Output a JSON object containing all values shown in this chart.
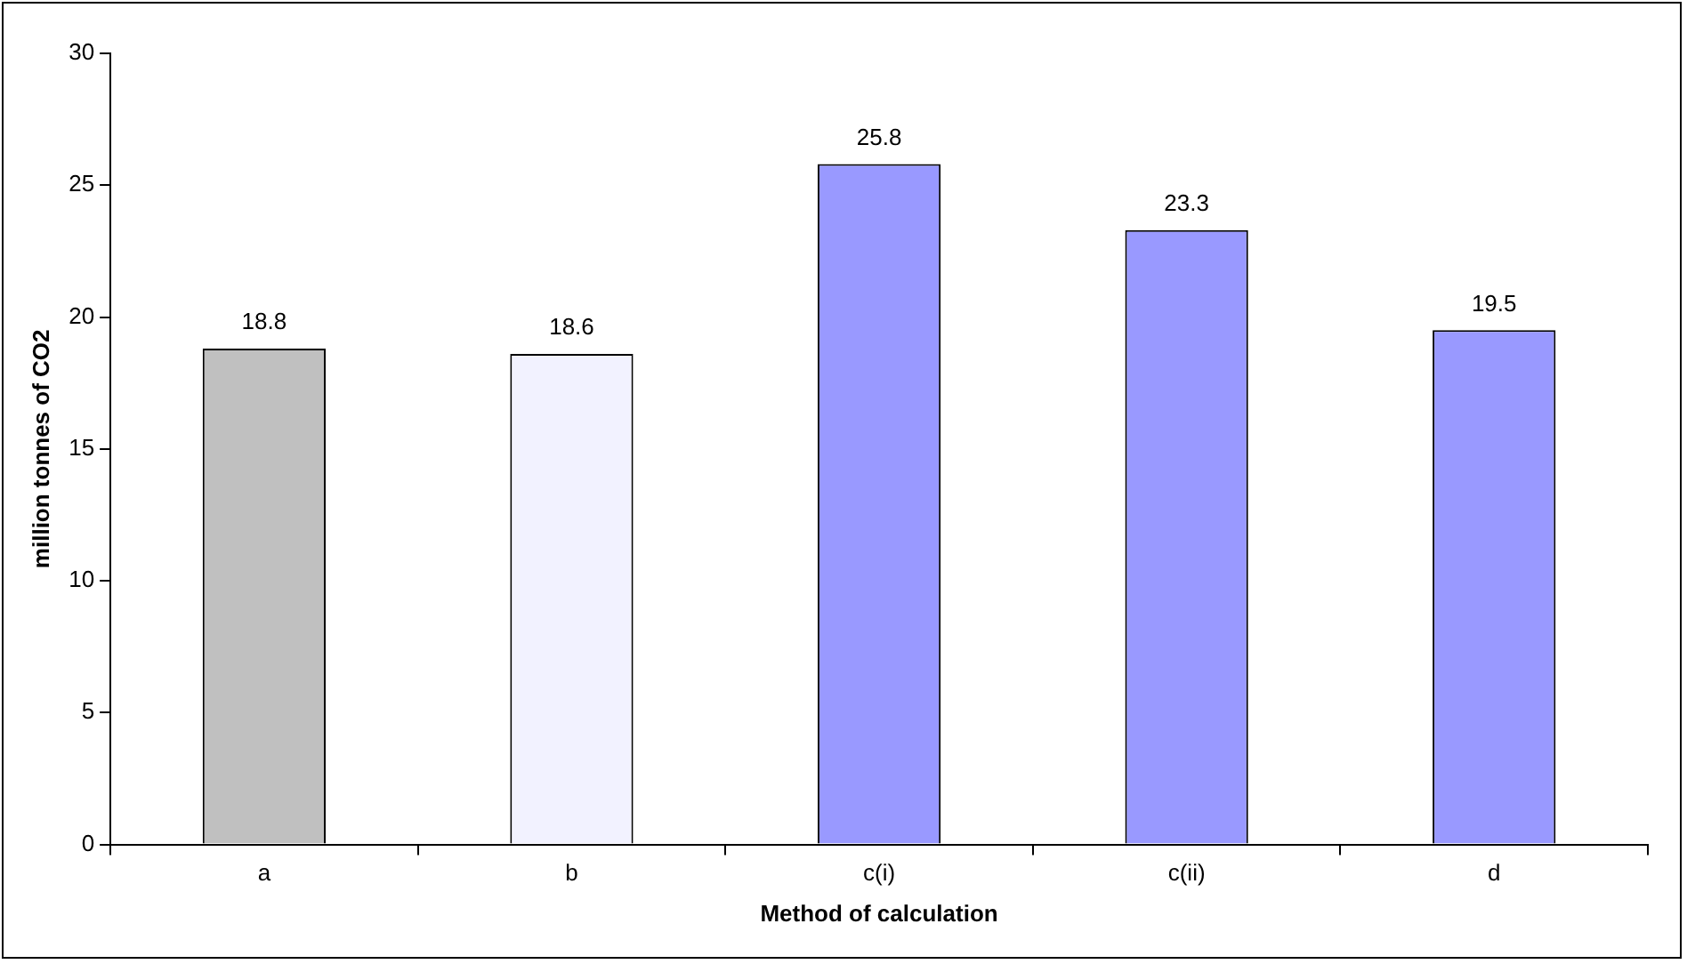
{
  "chart_data": {
    "type": "bar",
    "xlabel": "Method of calculation",
    "ylabel": "million tonnes of CO2",
    "categories": [
      "a",
      "b",
      "c(i)",
      "c(ii)",
      "d"
    ],
    "values": [
      18.8,
      18.6,
      25.8,
      23.3,
      19.5
    ],
    "colors": [
      "#c0c0c0",
      "#f2f2ff",
      "#9999ff",
      "#9999ff",
      "#9999ff"
    ],
    "ylim": [
      0,
      30
    ],
    "yticks": [
      0,
      5,
      10,
      15,
      20,
      25,
      30
    ],
    "data_labels": true
  }
}
